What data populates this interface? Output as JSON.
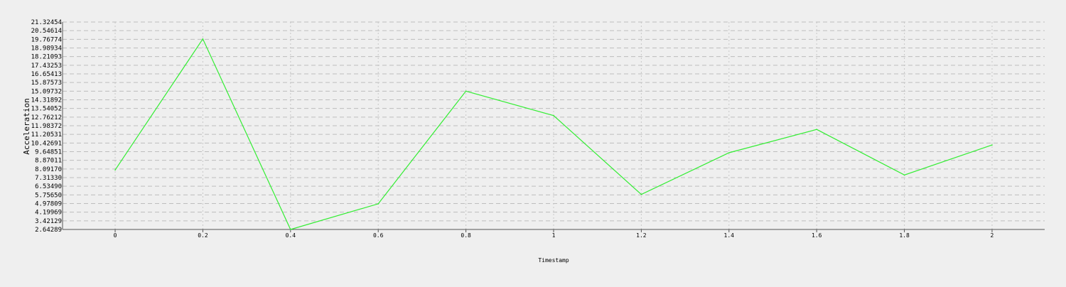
{
  "chart_data": {
    "type": "line",
    "title": "",
    "xlabel": "Timestamp",
    "ylabel": "Acceleration",
    "x": [
      0,
      0.2,
      0.4,
      0.6,
      0.8,
      1,
      1.2,
      1.4,
      1.6,
      1.8,
      2
    ],
    "x_tick_labels": [
      "0",
      "0.2",
      "0.4",
      "0.6",
      "0.8",
      "1",
      "1.2",
      "1.4",
      "1.6",
      "1.8",
      "2"
    ],
    "xlim": [
      -0.12,
      2.12
    ],
    "y_ticks": [
      "2.64289",
      "3.42129",
      "4.19969",
      "4.97809",
      "5.75650",
      "6.53490",
      "7.31330",
      "8.09170",
      "8.87011",
      "9.64851",
      "10.42691",
      "11.20531",
      "11.98372",
      "12.76212",
      "13.54052",
      "14.31892",
      "15.09732",
      "15.87573",
      "16.65413",
      "17.43253",
      "18.21093",
      "18.98934",
      "19.76774",
      "20.54614",
      "21.32454"
    ],
    "ylim": [
      2.64289,
      21.32454
    ],
    "grid": true,
    "series": [
      {
        "color": "#33ee33",
        "values": [
          8.0,
          19.8,
          2.64,
          4.95,
          15.1,
          12.9,
          5.8,
          9.55,
          11.65,
          7.55,
          10.25
        ]
      }
    ]
  }
}
